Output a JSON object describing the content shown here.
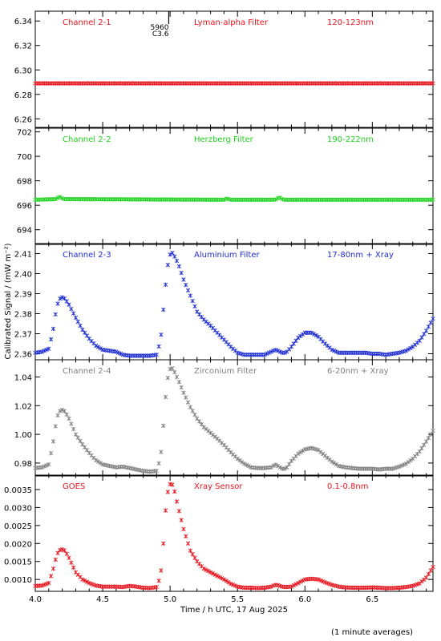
{
  "footer_note": "(1 minute averages)",
  "chart_data": {
    "type": "scatter",
    "xlabel": "Time / h UTC, 17 Aug 2025",
    "ylabel": "Calibrated Signal / (mW m⁻²)",
    "xlim": [
      4.0,
      6.95
    ],
    "xticks": [
      "4.0",
      "4.5",
      "5.0",
      "5.5",
      "6.0",
      "6.5"
    ],
    "xtick_values": [
      4.0,
      4.5,
      5.0,
      5.5,
      6.0,
      6.5
    ],
    "grid": false,
    "marker_note": {
      "text1": "5960",
      "text2": "C3.6",
      "x": 4.99
    },
    "panels": [
      {
        "channel": "Channel 2-1",
        "filter": "Lyman-alpha Filter",
        "band": "120-123nm",
        "color": "#e8141e",
        "ylim": [
          6.253,
          6.348
        ],
        "yticks": [
          "6.26",
          "6.28",
          "6.30",
          "6.32",
          "6.34"
        ],
        "ytick_values": [
          6.26,
          6.28,
          6.3,
          6.32,
          6.34
        ],
        "x": [
          4.0,
          6.95
        ],
        "y": [
          6.289,
          6.289
        ]
      },
      {
        "channel": "Channel 2-2",
        "filter": "Herzberg Filter",
        "band": "190-222nm",
        "color": "#1ed21e",
        "ylim": [
          692.8,
          702.3
        ],
        "yticks": [
          "694",
          "696",
          "698",
          "700",
          "702"
        ],
        "ytick_values": [
          694,
          696,
          698,
          700,
          702
        ],
        "x": [
          4.0,
          4.15,
          4.18,
          4.21,
          5.4,
          5.42,
          5.45,
          5.78,
          5.81,
          5.84,
          6.95
        ],
        "y": [
          696.45,
          696.5,
          696.7,
          696.5,
          696.45,
          696.55,
          696.45,
          696.45,
          696.65,
          696.45,
          696.45
        ]
      },
      {
        "channel": "Channel 2-3",
        "filter": "Aluminium Filter",
        "band": "17-80nm + Xray",
        "color": "#1e2dd2",
        "ylim": [
          2.357,
          2.415
        ],
        "yticks": [
          "2.36",
          "2.37",
          "2.38",
          "2.39",
          "2.40",
          "2.41"
        ],
        "ytick_values": [
          2.36,
          2.37,
          2.38,
          2.39,
          2.4,
          2.41
        ],
        "x": [
          4.0,
          4.05,
          4.1,
          4.13,
          4.16,
          4.19,
          4.22,
          4.25,
          4.3,
          4.35,
          4.4,
          4.45,
          4.5,
          4.55,
          4.6,
          4.65,
          4.7,
          4.75,
          4.8,
          4.85,
          4.9,
          4.93,
          4.95,
          4.97,
          4.99,
          5.01,
          5.03,
          5.06,
          5.1,
          5.15,
          5.2,
          5.25,
          5.3,
          5.35,
          5.4,
          5.45,
          5.5,
          5.55,
          5.6,
          5.65,
          5.7,
          5.75,
          5.78,
          5.8,
          5.83,
          5.86,
          5.9,
          5.95,
          6.0,
          6.05,
          6.1,
          6.15,
          6.2,
          6.25,
          6.3,
          6.35,
          6.4,
          6.45,
          6.5,
          6.55,
          6.6,
          6.65,
          6.7,
          6.75,
          6.8,
          6.85,
          6.9,
          6.95
        ],
        "y": [
          2.3605,
          2.361,
          2.3625,
          2.371,
          2.384,
          2.3885,
          2.3875,
          2.3845,
          2.378,
          2.372,
          2.3675,
          2.364,
          2.362,
          2.3615,
          2.361,
          2.3595,
          2.359,
          2.359,
          2.359,
          2.359,
          2.3595,
          2.367,
          2.382,
          2.397,
          2.408,
          2.411,
          2.409,
          2.405,
          2.397,
          2.389,
          2.381,
          2.377,
          2.374,
          2.3705,
          2.367,
          2.3635,
          2.3605,
          2.3595,
          2.3595,
          2.3595,
          2.3595,
          2.361,
          2.362,
          2.3615,
          2.3605,
          2.3605,
          2.3635,
          2.368,
          2.3705,
          2.3705,
          2.3685,
          2.365,
          2.362,
          2.3605,
          2.3605,
          2.3605,
          2.3605,
          2.3605,
          2.36,
          2.36,
          2.3595,
          2.36,
          2.3605,
          2.3615,
          2.3635,
          2.3665,
          2.3715,
          2.3775
        ]
      },
      {
        "channel": "Channel 2-4",
        "filter": "Zirconium Filter",
        "band": "6-20nm + Xray",
        "color": "#808080",
        "ylim": [
          0.971,
          1.052
        ],
        "yticks": [
          "0.98",
          "1.00",
          "1.02",
          "1.04"
        ],
        "ytick_values": [
          0.98,
          1.0,
          1.02,
          1.04
        ],
        "x": [
          4.0,
          4.05,
          4.1,
          4.13,
          4.16,
          4.19,
          4.22,
          4.25,
          4.3,
          4.35,
          4.4,
          4.45,
          4.5,
          4.55,
          4.6,
          4.65,
          4.7,
          4.75,
          4.8,
          4.85,
          4.9,
          4.93,
          4.95,
          4.97,
          4.99,
          5.01,
          5.03,
          5.06,
          5.1,
          5.15,
          5.2,
          5.25,
          5.3,
          5.35,
          5.4,
          5.45,
          5.5,
          5.55,
          5.6,
          5.65,
          5.7,
          5.75,
          5.78,
          5.8,
          5.83,
          5.86,
          5.9,
          5.95,
          6.0,
          6.05,
          6.1,
          6.15,
          6.2,
          6.25,
          6.3,
          6.35,
          6.4,
          6.45,
          6.5,
          6.55,
          6.6,
          6.65,
          6.7,
          6.75,
          6.8,
          6.85,
          6.9,
          6.95
        ],
        "y": [
          0.9765,
          0.977,
          0.979,
          0.993,
          1.012,
          1.0175,
          1.016,
          1.011,
          1.0,
          0.993,
          0.987,
          0.982,
          0.979,
          0.978,
          0.977,
          0.9775,
          0.9765,
          0.9755,
          0.9745,
          0.974,
          0.9745,
          0.984,
          1.006,
          1.03,
          1.044,
          1.047,
          1.044,
          1.038,
          1.029,
          1.019,
          1.011,
          1.005,
          1.001,
          0.997,
          0.9925,
          0.9875,
          0.983,
          0.9795,
          0.977,
          0.9765,
          0.9765,
          0.977,
          0.979,
          0.978,
          0.976,
          0.976,
          0.9815,
          0.9865,
          0.9895,
          0.9905,
          0.989,
          0.985,
          0.981,
          0.978,
          0.977,
          0.9765,
          0.976,
          0.976,
          0.976,
          0.9755,
          0.976,
          0.976,
          0.9775,
          0.9795,
          0.983,
          0.988,
          0.995,
          1.0025
        ]
      },
      {
        "channel": "GOES",
        "filter": "Xray Sensor",
        "band": "0.1-0.8nm",
        "color": "#e8141e",
        "ylim": [
          0.00067,
          0.0039
        ],
        "yticks": [
          "0.0010",
          "0.0015",
          "0.0020",
          "0.0025",
          "0.0030",
          "0.0035"
        ],
        "ytick_values": [
          0.001,
          0.0015,
          0.002,
          0.0025,
          0.003,
          0.0035
        ],
        "x": [
          4.0,
          4.05,
          4.1,
          4.13,
          4.16,
          4.19,
          4.22,
          4.25,
          4.3,
          4.35,
          4.4,
          4.45,
          4.5,
          4.55,
          4.6,
          4.65,
          4.7,
          4.75,
          4.8,
          4.85,
          4.9,
          4.93,
          4.95,
          4.97,
          4.99,
          5.01,
          5.03,
          5.06,
          5.1,
          5.15,
          5.2,
          5.25,
          5.3,
          5.35,
          5.4,
          5.45,
          5.5,
          5.55,
          5.6,
          5.65,
          5.7,
          5.75,
          5.78,
          5.8,
          5.83,
          5.86,
          5.9,
          5.95,
          6.0,
          6.05,
          6.1,
          6.15,
          6.2,
          6.25,
          6.3,
          6.35,
          6.4,
          6.45,
          6.5,
          6.55,
          6.6,
          6.65,
          6.7,
          6.75,
          6.8,
          6.85,
          6.9,
          6.95
        ],
        "y": [
          0.00082,
          0.00083,
          0.0009,
          0.00125,
          0.0017,
          0.00185,
          0.0018,
          0.0016,
          0.0012,
          0.001,
          0.0009,
          0.00083,
          0.0008,
          0.0008,
          0.0008,
          0.00079,
          0.00082,
          0.0008,
          0.00077,
          0.00076,
          0.00079,
          0.0011,
          0.002,
          0.0031,
          0.0036,
          0.0037,
          0.0035,
          0.003,
          0.0024,
          0.0018,
          0.0015,
          0.0013,
          0.0012,
          0.0011,
          0.001,
          0.00088,
          0.0008,
          0.00077,
          0.00077,
          0.00076,
          0.00077,
          0.0008,
          0.00085,
          0.00084,
          0.0008,
          0.00079,
          0.0008,
          0.0009,
          0.001,
          0.00102,
          0.001,
          0.00092,
          0.00085,
          0.0008,
          0.00078,
          0.00077,
          0.00077,
          0.00077,
          0.00078,
          0.00077,
          0.00076,
          0.00076,
          0.00077,
          0.00079,
          0.00082,
          0.00089,
          0.00105,
          0.00135
        ]
      }
    ]
  }
}
